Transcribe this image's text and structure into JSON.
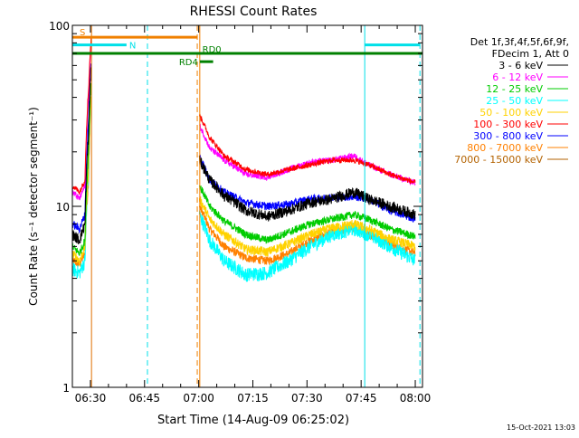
{
  "chart_data": {
    "type": "line",
    "title": "RHESSI Count Rates",
    "xlabel": "Start Time (14-Aug-09 06:25:02)",
    "ylabel": "Count Rate (s⁻¹ detector segment⁻¹)",
    "x_unit": "minutes after 06:25:02",
    "xlim": [
      0,
      97
    ],
    "ylim": [
      1,
      100
    ],
    "yscale": "log",
    "x_ticks": [
      {
        "value": 5,
        "label": "06:30"
      },
      {
        "value": 20,
        "label": "06:45"
      },
      {
        "value": 35,
        "label": "07:00"
      },
      {
        "value": 50,
        "label": "07:15"
      },
      {
        "value": 65,
        "label": "07:30"
      },
      {
        "value": 80,
        "label": "07:45"
      },
      {
        "value": 95,
        "label": "08:00"
      }
    ],
    "y_ticks": [
      {
        "value": 1,
        "label": "1"
      },
      {
        "value": 10,
        "label": "10"
      },
      {
        "value": 100,
        "label": "100"
      }
    ],
    "legend_header": [
      "Det 1f,3f,4f,5f,6f,9f,",
      "FDecim 1, Att 0"
    ],
    "legend_position": "right",
    "series": [
      {
        "name": "3 - 6 keV",
        "color": "#000000",
        "pre": [
          [
            0,
            7
          ],
          [
            2,
            6.5
          ],
          [
            3.5,
            8
          ],
          [
            4.5,
            25
          ],
          [
            5.2,
            60
          ]
        ],
        "post": [
          [
            35.2,
            18
          ],
          [
            38,
            14
          ],
          [
            42,
            11.5
          ],
          [
            48,
            9.5
          ],
          [
            54,
            8.8
          ],
          [
            60,
            9.5
          ],
          [
            66,
            10.5
          ],
          [
            72,
            11
          ],
          [
            78,
            12
          ],
          [
            82,
            11
          ],
          [
            88,
            10
          ],
          [
            95,
            9
          ]
        ],
        "noise": 0.07
      },
      {
        "name": "6 - 12 keV",
        "color": "#ff00ff",
        "pre": [
          [
            0,
            12
          ],
          [
            2,
            11
          ],
          [
            3.5,
            13
          ],
          [
            4.5,
            40
          ],
          [
            5.2,
            80
          ]
        ],
        "post": [
          [
            35.2,
            28
          ],
          [
            38,
            21
          ],
          [
            42,
            18
          ],
          [
            48,
            15
          ],
          [
            54,
            14.5
          ],
          [
            60,
            16
          ],
          [
            66,
            17.5
          ],
          [
            72,
            18
          ],
          [
            78,
            19
          ],
          [
            82,
            17
          ],
          [
            88,
            15
          ],
          [
            95,
            13.5
          ]
        ],
        "noise": 0.04
      },
      {
        "name": "12 - 25 keV",
        "color": "#00cc00",
        "pre": [
          [
            0,
            6
          ],
          [
            2,
            5.5
          ],
          [
            3.5,
            6.5
          ],
          [
            4.5,
            20
          ],
          [
            5.2,
            50
          ]
        ],
        "post": [
          [
            35.2,
            13
          ],
          [
            38,
            10
          ],
          [
            42,
            8.3
          ],
          [
            48,
            7
          ],
          [
            54,
            6.5
          ],
          [
            60,
            7.2
          ],
          [
            66,
            8
          ],
          [
            72,
            8.5
          ],
          [
            78,
            9
          ],
          [
            82,
            8.5
          ],
          [
            88,
            7.5
          ],
          [
            95,
            6.8
          ]
        ],
        "noise": 0.05
      },
      {
        "name": "25 - 50 keV",
        "color": "#00ffff",
        "pre": [
          [
            0,
            4.5
          ],
          [
            2,
            4.3
          ],
          [
            3.5,
            5
          ],
          [
            4.5,
            15
          ],
          [
            5.2,
            40
          ]
        ],
        "post": [
          [
            35.2,
            9
          ],
          [
            38,
            6.5
          ],
          [
            42,
            5
          ],
          [
            48,
            4.2
          ],
          [
            54,
            4.3
          ],
          [
            60,
            5
          ],
          [
            66,
            6
          ],
          [
            72,
            7
          ],
          [
            78,
            7.5
          ],
          [
            82,
            7
          ],
          [
            88,
            6
          ],
          [
            95,
            5
          ]
        ],
        "noise": 0.09
      },
      {
        "name": "50 - 100 keV",
        "color": "#ffd200",
        "pre": [
          [
            0,
            5.5
          ],
          [
            2,
            5
          ],
          [
            3.5,
            6
          ],
          [
            4.5,
            16
          ],
          [
            5.2,
            42
          ]
        ],
        "post": [
          [
            35.2,
            11
          ],
          [
            38,
            8.5
          ],
          [
            42,
            7
          ],
          [
            48,
            5.8
          ],
          [
            54,
            5.6
          ],
          [
            60,
            6.2
          ],
          [
            66,
            7
          ],
          [
            72,
            7.6
          ],
          [
            78,
            8
          ],
          [
            82,
            7.5
          ],
          [
            88,
            6.6
          ],
          [
            95,
            6
          ]
        ],
        "noise": 0.06
      },
      {
        "name": "100 - 300 keV",
        "color": "#ff0000",
        "pre": [
          [
            0,
            13
          ],
          [
            2,
            12
          ],
          [
            3.5,
            14
          ],
          [
            4.5,
            45
          ],
          [
            5.2,
            85
          ]
        ],
        "post": [
          [
            35.2,
            32
          ],
          [
            38,
            24
          ],
          [
            42,
            19
          ],
          [
            48,
            16
          ],
          [
            54,
            15
          ],
          [
            60,
            16
          ],
          [
            66,
            17
          ],
          [
            72,
            18
          ],
          [
            78,
            18
          ],
          [
            82,
            17
          ],
          [
            88,
            15
          ],
          [
            95,
            13.5
          ]
        ],
        "noise": 0.035
      },
      {
        "name": "300 - 800 keV",
        "color": "#0000ff",
        "pre": [
          [
            0,
            8
          ],
          [
            2,
            7.5
          ],
          [
            3.5,
            9
          ],
          [
            4.5,
            30
          ],
          [
            5.2,
            65
          ]
        ],
        "post": [
          [
            35.2,
            19
          ],
          [
            38,
            14
          ],
          [
            42,
            12
          ],
          [
            48,
            10.5
          ],
          [
            54,
            10
          ],
          [
            60,
            10.3
          ],
          [
            66,
            11
          ],
          [
            72,
            11.2
          ],
          [
            78,
            11.3
          ],
          [
            82,
            11
          ],
          [
            88,
            9.5
          ],
          [
            95,
            8.5
          ]
        ],
        "noise": 0.05
      },
      {
        "name": "800 - 7000 keV",
        "color": "#ff8000",
        "pre": [
          [
            0,
            5
          ],
          [
            2,
            4.8
          ],
          [
            3.5,
            5.5
          ],
          [
            4.5,
            14
          ],
          [
            5.2,
            38
          ]
        ],
        "post": [
          [
            35.2,
            10
          ],
          [
            38,
            7.5
          ],
          [
            42,
            6
          ],
          [
            48,
            5.2
          ],
          [
            54,
            5
          ],
          [
            60,
            5.5
          ],
          [
            66,
            6.5
          ],
          [
            72,
            7.2
          ],
          [
            78,
            7.6
          ],
          [
            82,
            7
          ],
          [
            88,
            6.2
          ],
          [
            95,
            5.5
          ]
        ],
        "noise": 0.055
      },
      {
        "name": "7000 - 15000 keV",
        "color": "#b36200",
        "pre": [],
        "post": [],
        "noise": 0
      }
    ],
    "vlines": [
      {
        "x": 5.3,
        "color": "#e07000",
        "style": "solid",
        "label": ""
      },
      {
        "x": 20.8,
        "color": "#00e0e8",
        "style": "dashed",
        "label": ""
      },
      {
        "x": 34.6,
        "color": "#f08000",
        "style": "dashed",
        "label": ""
      },
      {
        "x": 35.3,
        "color": "#f08000",
        "style": "solid",
        "label": ""
      },
      {
        "x": 81,
        "color": "#00e0e8",
        "style": "solid",
        "label": ""
      },
      {
        "x": 96.3,
        "color": "#00e0e8",
        "style": "dashed",
        "label": ""
      }
    ],
    "flag_bars": [
      {
        "label": "S",
        "color": "#f08000",
        "x0": 0,
        "x1": 34.6,
        "y": 86,
        "label_pos": "start"
      },
      {
        "label": "N",
        "color": "#00e0e8",
        "x0": 0,
        "x1": 15,
        "y": 78,
        "label_pos": "right-of-end"
      },
      {
        "label": "",
        "color": "#00e0e8",
        "x0": 81,
        "x1": 96.3,
        "y": 78,
        "label_pos": "none"
      },
      {
        "label": "RD0",
        "color": "#008000",
        "x0": 0,
        "x1": 97,
        "y": 70,
        "label_pos": "above-x",
        "label_x": 36
      },
      {
        "label": "RD4",
        "color": "#008000",
        "x0": 35.3,
        "x1": 39,
        "y": 63,
        "label_pos": "left-of-start"
      }
    ]
  },
  "footer": {
    "timestamp": "15-Oct-2021 13:03"
  }
}
